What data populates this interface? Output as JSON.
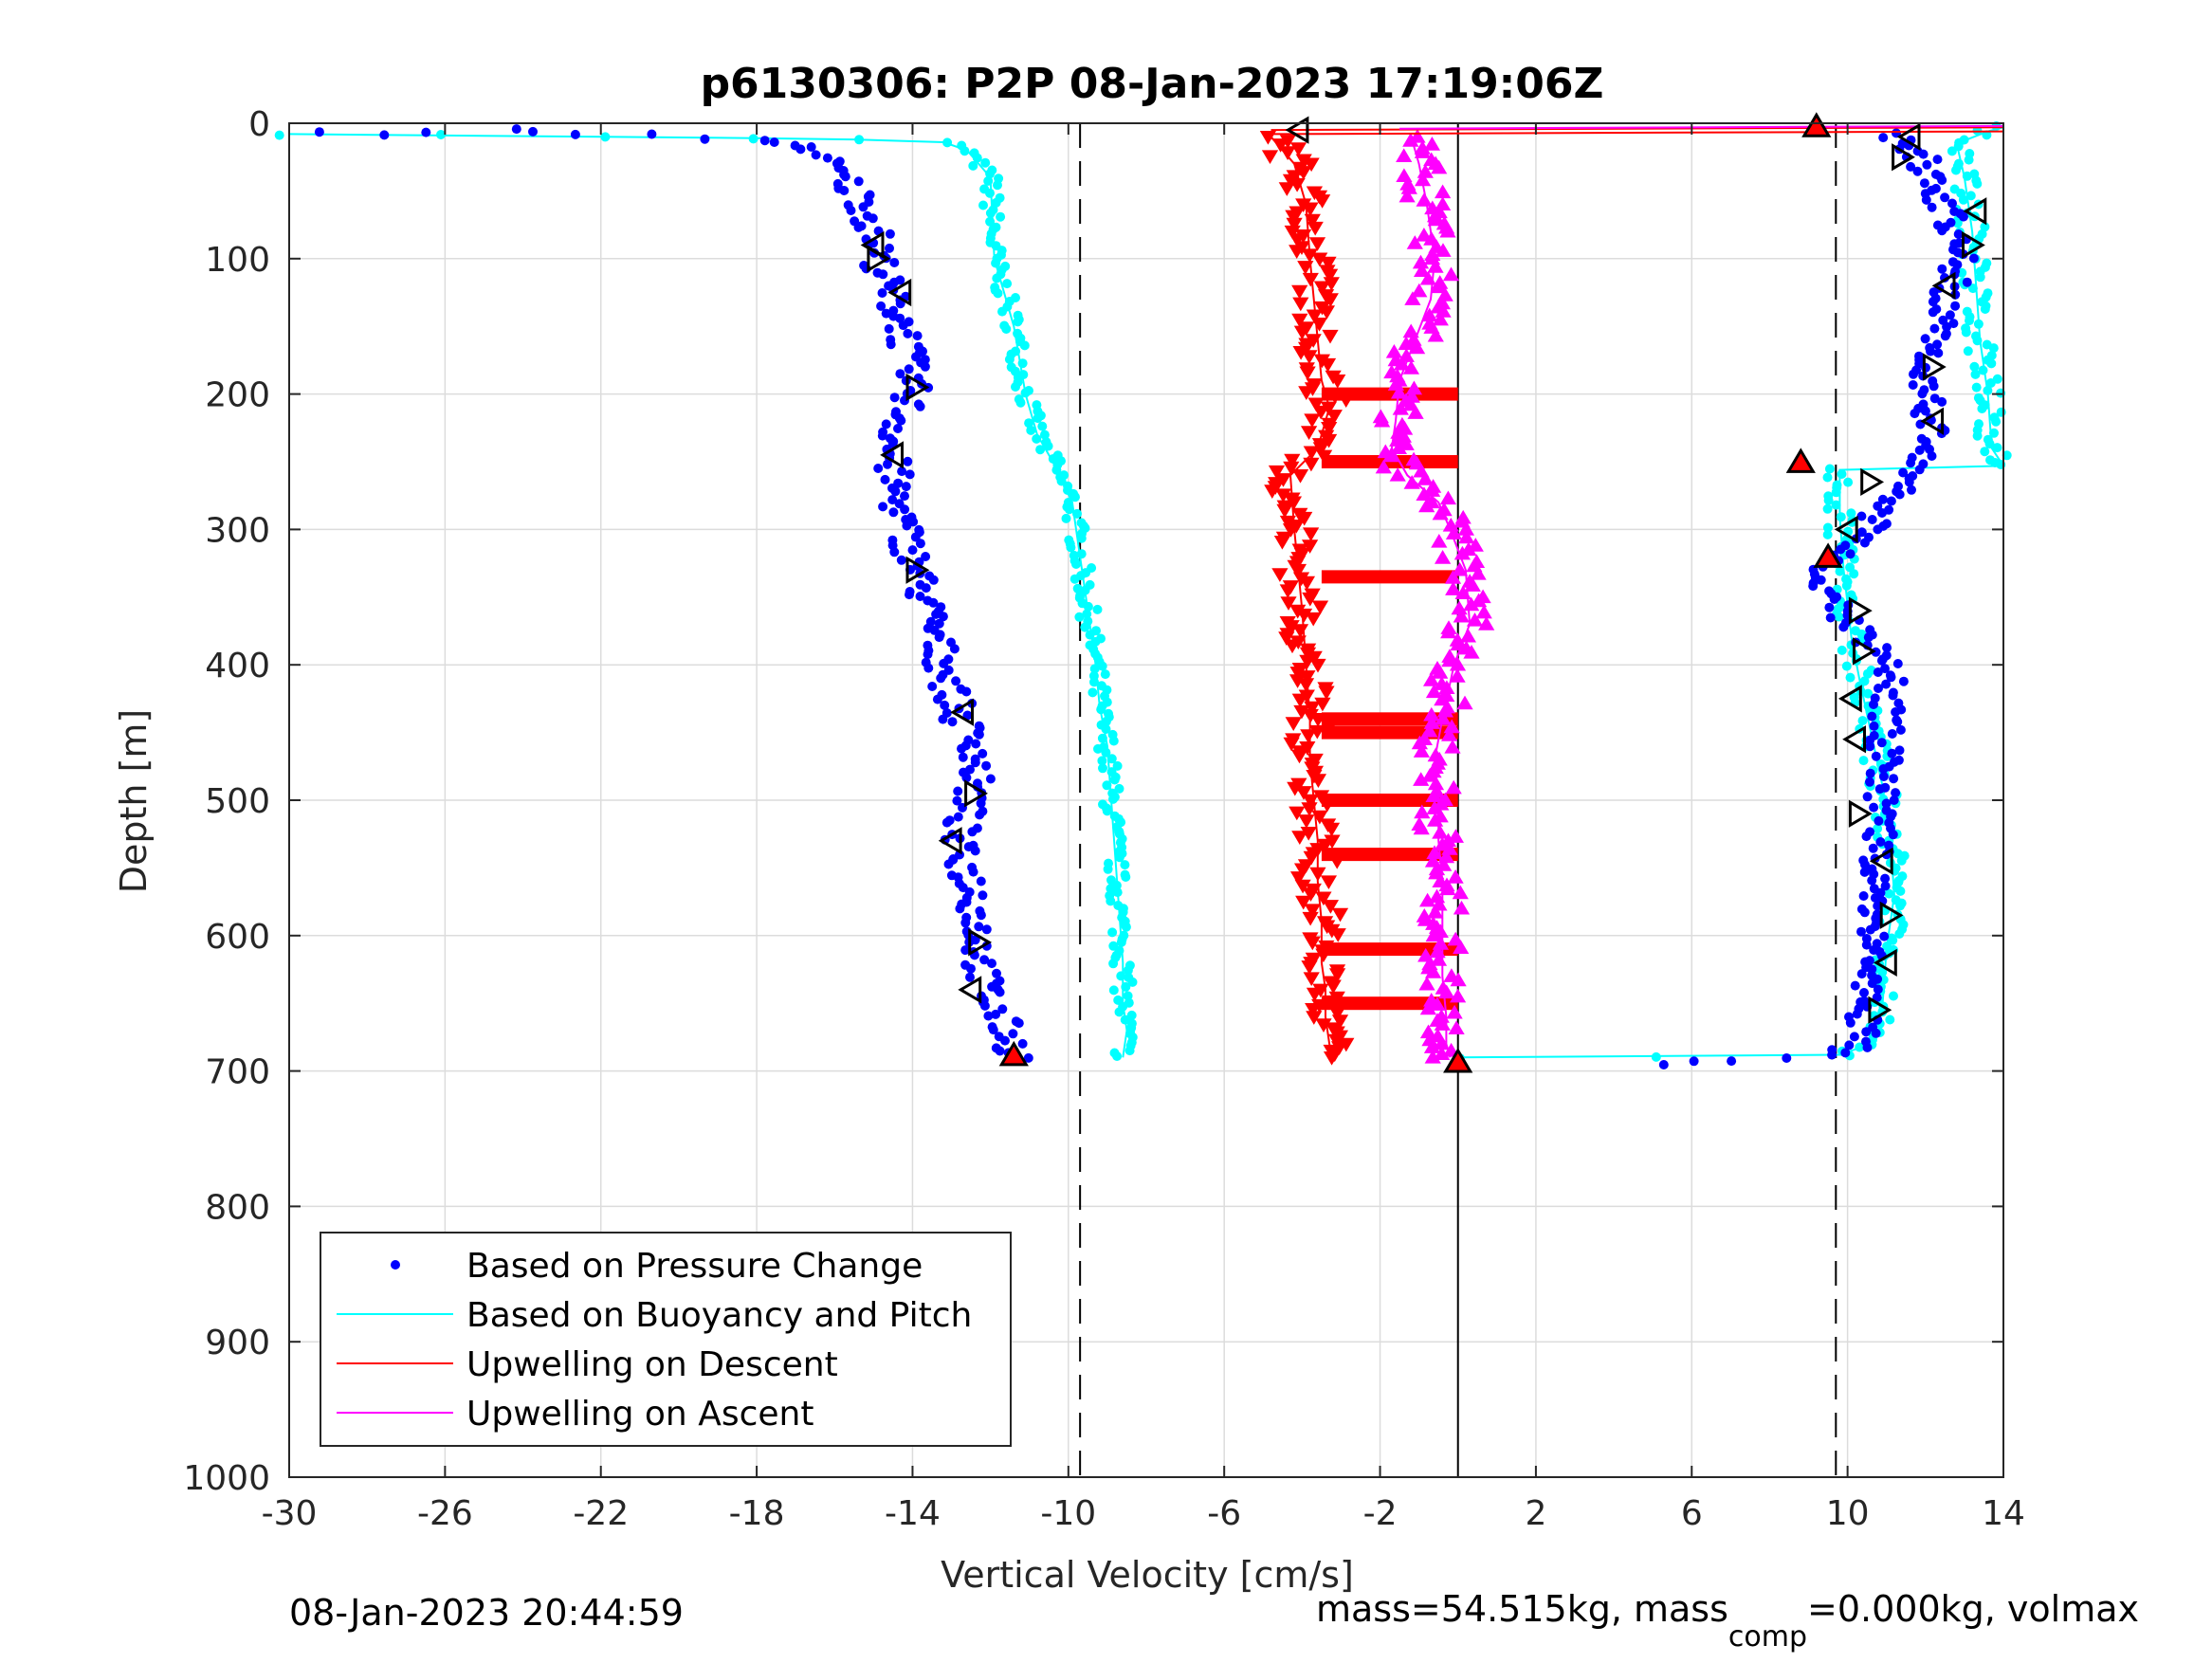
{
  "chart_data": {
    "type": "scatter",
    "title": "p6130306: P2P 08-Jan-2023 17:19:06Z",
    "xlabel": "Vertical Velocity [cm/s]",
    "ylabel": "Depth [m]",
    "xlim": [
      -30,
      14
    ],
    "ylim": [
      0,
      1000
    ],
    "y_reversed": true,
    "grid": true,
    "x_ticks": [
      "-30",
      "-26",
      "-22",
      "-18",
      "-14",
      "-10",
      "-6",
      "-2",
      "2",
      "6",
      "10",
      "14"
    ],
    "y_ticks": [
      "0",
      "100",
      "200",
      "300",
      "400",
      "500",
      "600",
      "700",
      "800",
      "900",
      "1000"
    ],
    "reference_lines": {
      "dashed_x": [
        -9.7,
        9.7
      ],
      "solid_x": [
        0
      ]
    },
    "legend_position": "bottom-left",
    "legend": [
      {
        "label": "Based on Pressure Change",
        "color": "#0000ff",
        "style": "dot"
      },
      {
        "label": "Based on Buoyancy and Pitch",
        "color": "#00ffff",
        "style": "line"
      },
      {
        "label": "Upwelling on Descent",
        "color": "#ff0000",
        "style": "line"
      },
      {
        "label": "Upwelling on Ascent",
        "color": "#ff00ff",
        "style": "line"
      }
    ],
    "series": [
      {
        "name": "Based on Pressure Change (descent)",
        "color": "#0000ff",
        "x": [
          -29.6,
          -27.7,
          -24.5,
          -22.9,
          -21.1,
          -19.0,
          -17.2,
          -16.5,
          -15.8,
          -15.2,
          -14.9,
          -14.7,
          -14.2,
          -14.1,
          -14.0,
          -14.6,
          -14.4,
          -14.1,
          -13.9,
          -13.5,
          -13.1,
          -12.8,
          -12.3,
          -12.5,
          -12.9,
          -12.4,
          -12.3,
          -12.2,
          -12.0,
          -11.6,
          -11.3
        ],
        "y": [
          6,
          8,
          5,
          8,
          9,
          11,
          14,
          20,
          40,
          60,
          90,
          120,
          150,
          180,
          200,
          240,
          280,
          310,
          330,
          370,
          410,
          440,
          460,
          500,
          530,
          570,
          600,
          630,
          650,
          670,
          690
        ]
      },
      {
        "name": "Based on Buoyancy and Pitch (descent)",
        "color": "#00ffff",
        "x": [
          -30.0,
          -26.0,
          -22.0,
          -18.0,
          -15.5,
          -13.2,
          -12.6,
          -12.0,
          -11.9,
          -11.4,
          -11.1,
          -10.8,
          -10.4,
          -9.9,
          -9.7,
          -9.5,
          -9.3,
          -9.2,
          -9.0,
          -8.9,
          -8.8,
          -8.7,
          -8.6,
          -8.6,
          -8.5,
          -8.6
        ],
        "y": [
          8,
          9,
          10,
          11,
          12,
          14,
          20,
          40,
          100,
          150,
          200,
          230,
          250,
          280,
          320,
          360,
          400,
          430,
          460,
          500,
          540,
          580,
          620,
          650,
          670,
          690
        ]
      },
      {
        "name": "Upwelling on Descent",
        "color": "#ff0000",
        "x": [
          -4.8,
          -4.2,
          -3.9,
          -3.8,
          -3.7,
          -3.6,
          -3.5,
          -3.3,
          -3.6,
          -4.3,
          -4.2,
          -4.1,
          -4.0,
          -3.9,
          -3.8,
          -3.8,
          -3.7,
          -3.6,
          -3.6,
          -3.5,
          -3.5,
          -3.4,
          -3.4,
          -3.3,
          -3.2
        ],
        "y": [
          10,
          30,
          60,
          100,
          130,
          160,
          190,
          210,
          240,
          260,
          300,
          330,
          360,
          400,
          440,
          470,
          500,
          530,
          560,
          590,
          620,
          640,
          660,
          680,
          690
        ],
        "bands": [
          200,
          250,
          335,
          440,
          450,
          500,
          540,
          610,
          650
        ]
      },
      {
        "name": "Upwelling on Ascent",
        "color": "#ff00ff",
        "x": [
          -1.2,
          -1.0,
          -0.8,
          -0.6,
          -0.7,
          -1.1,
          -1.5,
          -1.6,
          -1.7,
          -1.3,
          -0.5,
          -0.2,
          0.2,
          0.3,
          -0.1,
          -0.4,
          -0.6,
          -0.5,
          -0.5,
          -0.4,
          -0.4,
          -0.4,
          -0.3,
          -0.3,
          -0.2
        ],
        "y": [
          10,
          30,
          60,
          100,
          130,
          160,
          190,
          220,
          240,
          260,
          280,
          300,
          330,
          370,
          400,
          440,
          470,
          500,
          530,
          560,
          600,
          630,
          660,
          680,
          690
        ]
      },
      {
        "name": "Based on Pressure Change (ascent)",
        "color": "#0000ff",
        "x": [
          5.5,
          6.7,
          8.6,
          9.6,
          10.3,
          10.5,
          10.6,
          10.7,
          10.8,
          10.9,
          11.0,
          11.1,
          9.8,
          9.3,
          10.5,
          11.5,
          12.2,
          12.1,
          11.9,
          12.3,
          12.9,
          12.6,
          12.1,
          11.9,
          11.3,
          11.0
        ],
        "y": [
          695,
          692,
          690,
          688,
          680,
          650,
          600,
          560,
          520,
          480,
          440,
          400,
          360,
          330,
          300,
          260,
          240,
          210,
          180,
          150,
          100,
          70,
          40,
          25,
          12,
          8
        ]
      },
      {
        "name": "Based on Buoyancy and Pitch (ascent)",
        "color": "#00ffff",
        "x": [
          0.0,
          5.0,
          9.8,
          10.6,
          10.9,
          11.0,
          11.2,
          11.1,
          10.9,
          10.6,
          10.3,
          10.1,
          9.9,
          9.8,
          9.8,
          14.0,
          13.7,
          13.6,
          13.4,
          13.3,
          13.2,
          13.0,
          12.8,
          13.6,
          14.0
        ],
        "y": [
          690,
          689,
          688,
          680,
          650,
          610,
          570,
          530,
          490,
          450,
          410,
          380,
          330,
          290,
          256,
          253,
          240,
          200,
          160,
          120,
          80,
          40,
          15,
          6,
          3
        ]
      }
    ],
    "triangle_markers": {
      "open_left": [
        [
          -15.0,
          90
        ],
        [
          -14.3,
          125
        ],
        [
          -14.5,
          245
        ],
        [
          -12.7,
          435
        ],
        [
          -13.0,
          530
        ],
        [
          -12.5,
          640
        ],
        [
          -4.1,
          5
        ],
        [
          11.6,
          10
        ],
        [
          13.3,
          65
        ],
        [
          12.5,
          120
        ],
        [
          12.2,
          220
        ],
        [
          10.0,
          300
        ],
        [
          10.1,
          425
        ],
        [
          10.2,
          455
        ],
        [
          10.9,
          545
        ],
        [
          11.0,
          620
        ]
      ],
      "open_right": [
        [
          -14.9,
          100
        ],
        [
          -13.9,
          195
        ],
        [
          -13.9,
          330
        ],
        [
          -12.4,
          495
        ],
        [
          -12.3,
          605
        ],
        [
          11.4,
          25
        ],
        [
          13.2,
          90
        ],
        [
          12.2,
          180
        ],
        [
          10.6,
          265
        ],
        [
          10.3,
          360
        ],
        [
          10.4,
          390
        ],
        [
          10.3,
          510
        ],
        [
          11.1,
          585
        ],
        [
          10.8,
          655
        ]
      ],
      "filled_red": [
        [
          -11.4,
          688
        ],
        [
          0.0,
          693
        ],
        [
          9.2,
          2
        ],
        [
          8.8,
          250
        ],
        [
          9.5,
          320
        ]
      ]
    }
  },
  "footer": {
    "timestamp": "08-Jan-2023 20:44:59",
    "mass_text_a": "mass=54.515kg, mass",
    "mass_sub": "comp",
    "mass_text_b": "=0.000kg, volmax"
  }
}
